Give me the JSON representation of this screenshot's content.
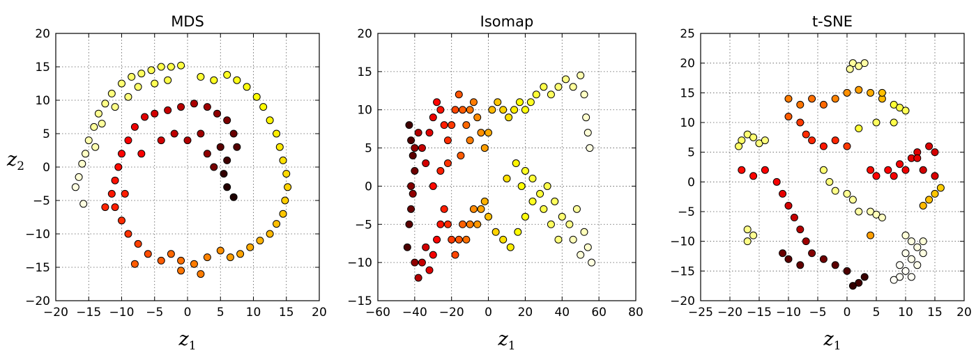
{
  "chart_data": [
    {
      "type": "scatter",
      "title": "MDS",
      "xlabel": "z",
      "xlabel_sub": "1",
      "ylabel": "z",
      "ylabel_sub": "2",
      "xlim": [
        -20,
        20
      ],
      "ylim": [
        -20,
        20
      ],
      "xticks": [
        -20,
        -15,
        -10,
        -5,
        0,
        5,
        10,
        15,
        20
      ],
      "yticks": [
        -20,
        -15,
        -10,
        -5,
        0,
        5,
        10,
        15,
        20
      ],
      "grid": true,
      "colormap": "hot",
      "points": [
        [
          -17,
          -3,
          0.97
        ],
        [
          -16.5,
          -1.5,
          0.96
        ],
        [
          -16,
          0.5,
          0.95
        ],
        [
          -15.5,
          2,
          0.94
        ],
        [
          -15,
          4,
          0.92
        ],
        [
          -14.2,
          6,
          0.9
        ],
        [
          -13.5,
          8,
          0.89
        ],
        [
          -12.5,
          9.5,
          0.88
        ],
        [
          -11.5,
          11,
          0.87
        ],
        [
          -10,
          12.5,
          0.86
        ],
        [
          -8.5,
          13.5,
          0.85
        ],
        [
          -7,
          14,
          0.84
        ],
        [
          -5.5,
          14.5,
          0.83
        ],
        [
          -4,
          15,
          0.82
        ],
        [
          -2.5,
          15,
          0.82
        ],
        [
          -1,
          15.2,
          0.81
        ],
        [
          -15.8,
          -5.5,
          0.97
        ],
        [
          -14,
          3,
          0.92
        ],
        [
          -13,
          6.5,
          0.9
        ],
        [
          -11,
          9,
          0.88
        ],
        [
          -9,
          10.5,
          0.87
        ],
        [
          -7.5,
          12,
          0.85
        ],
        [
          -5,
          12.5,
          0.83
        ],
        [
          -3,
          13,
          0.82
        ],
        [
          2,
          13.5,
          0.8
        ],
        [
          4,
          13,
          0.78
        ],
        [
          6,
          13.8,
          0.78
        ],
        [
          7.5,
          13,
          0.77
        ],
        [
          9,
          12,
          0.76
        ],
        [
          10.5,
          10.5,
          0.75
        ],
        [
          11.5,
          9,
          0.74
        ],
        [
          12.5,
          7,
          0.73
        ],
        [
          13.5,
          5,
          0.72
        ],
        [
          14,
          3,
          0.71
        ],
        [
          14.5,
          1,
          0.7
        ],
        [
          15,
          -1,
          0.69
        ],
        [
          15.2,
          -3,
          0.68
        ],
        [
          14.8,
          -5,
          0.67
        ],
        [
          14.5,
          -7,
          0.66
        ],
        [
          13.5,
          -8.5,
          0.65
        ],
        [
          12.5,
          -10,
          0.64
        ],
        [
          11,
          -11,
          0.63
        ],
        [
          9.5,
          -12,
          0.62
        ],
        [
          8,
          -13,
          0.61
        ],
        [
          6.5,
          -13.5,
          0.6
        ],
        [
          5,
          -12.5,
          0.58
        ],
        [
          3,
          -13.5,
          0.56
        ],
        [
          1,
          -14.5,
          0.55
        ],
        [
          -1,
          -14,
          0.53
        ],
        [
          -2.5,
          -13,
          0.52
        ],
        [
          -4,
          -14,
          0.5
        ],
        [
          -6,
          -13,
          0.48
        ],
        [
          -7.5,
          -11.5,
          0.46
        ],
        [
          -9,
          -10,
          0.44
        ],
        [
          -10,
          -8,
          0.43
        ],
        [
          -11,
          -6,
          0.41
        ],
        [
          -11.5,
          -4,
          0.4
        ],
        [
          -11,
          -2,
          0.39
        ],
        [
          -10.5,
          0,
          0.38
        ],
        [
          -10,
          2,
          0.37
        ],
        [
          -9,
          4,
          0.36
        ],
        [
          -8,
          6,
          0.34
        ],
        [
          -6.5,
          7.5,
          0.32
        ],
        [
          -5,
          8,
          0.3
        ],
        [
          -3,
          8.5,
          0.28
        ],
        [
          -1,
          9,
          0.26
        ],
        [
          1,
          9.5,
          0.24
        ],
        [
          3,
          9,
          0.22
        ],
        [
          4.5,
          8,
          0.2
        ],
        [
          6,
          7,
          0.17
        ],
        [
          7,
          5,
          0.14
        ],
        [
          7.5,
          3,
          0.11
        ],
        [
          6,
          1,
          0.08
        ],
        [
          5.5,
          -1,
          0.06
        ],
        [
          6,
          -3,
          0.04
        ],
        [
          7,
          -4.5,
          0.03
        ],
        [
          -8,
          -14.5,
          0.5
        ],
        [
          -1,
          -15.5,
          0.54
        ],
        [
          2,
          -16,
          0.55
        ],
        [
          -12.5,
          -6,
          0.42
        ],
        [
          -9.5,
          -4,
          0.41
        ],
        [
          -7,
          2,
          0.36
        ],
        [
          -4,
          4,
          0.3
        ],
        [
          -2,
          5,
          0.27
        ],
        [
          0,
          4,
          0.25
        ],
        [
          2,
          5,
          0.22
        ],
        [
          3,
          2,
          0.2
        ],
        [
          4,
          0,
          0.16
        ],
        [
          5,
          3,
          0.12
        ]
      ]
    },
    {
      "type": "scatter",
      "title": "Isomap",
      "xlabel": "z",
      "xlabel_sub": "1",
      "xlim": [
        -60,
        80
      ],
      "ylim": [
        -15,
        20
      ],
      "xticks": [
        -60,
        -40,
        -20,
        0,
        20,
        40,
        60,
        80
      ],
      "yticks": [
        -15,
        -10,
        -5,
        0,
        5,
        10,
        15,
        20
      ],
      "grid": true,
      "colormap": "hot",
      "points": [
        [
          -43,
          8,
          0.08
        ],
        [
          -42,
          6,
          0.1
        ],
        [
          -41,
          4,
          0.12
        ],
        [
          -40,
          2,
          0.15
        ],
        [
          -42,
          0,
          0.18
        ],
        [
          -41,
          -1,
          0.2
        ],
        [
          -42,
          -3,
          0.14
        ],
        [
          -40,
          5,
          0.2
        ],
        [
          -38,
          7,
          0.25
        ],
        [
          -36,
          5,
          0.28
        ],
        [
          -34,
          3,
          0.3
        ],
        [
          -32,
          7,
          0.32
        ],
        [
          -30,
          9,
          0.34
        ],
        [
          -28,
          11,
          0.37
        ],
        [
          -26,
          10,
          0.39
        ],
        [
          -24,
          8,
          0.41
        ],
        [
          -22,
          6,
          0.43
        ],
        [
          -20,
          8,
          0.45
        ],
        [
          -18,
          10,
          0.47
        ],
        [
          -16,
          12,
          0.49
        ],
        [
          -14,
          10,
          0.5
        ],
        [
          -12,
          8,
          0.52
        ],
        [
          -10,
          10,
          0.54
        ],
        [
          -8,
          11,
          0.55
        ],
        [
          -6,
          9,
          0.57
        ],
        [
          -4,
          7,
          0.58
        ],
        [
          -2,
          5,
          0.6
        ],
        [
          0,
          7,
          0.62
        ],
        [
          2,
          10,
          0.64
        ],
        [
          5,
          11,
          0.66
        ],
        [
          8,
          10,
          0.68
        ],
        [
          11,
          9,
          0.7
        ],
        [
          14,
          10,
          0.72
        ],
        [
          17,
          11,
          0.74
        ],
        [
          20,
          10,
          0.76
        ],
        [
          23,
          11,
          0.78
        ],
        [
          26,
          12,
          0.8
        ],
        [
          30,
          13,
          0.82
        ],
        [
          34,
          12,
          0.84
        ],
        [
          38,
          13,
          0.86
        ],
        [
          42,
          14,
          0.88
        ],
        [
          46,
          13,
          0.9
        ],
        [
          50,
          14.5,
          0.92
        ],
        [
          52,
          12,
          0.94
        ],
        [
          53,
          9,
          0.95
        ],
        [
          54,
          7,
          0.96
        ],
        [
          55,
          5,
          0.97
        ],
        [
          -40,
          -10,
          0.2
        ],
        [
          -38,
          -12,
          0.25
        ],
        [
          -36,
          -10,
          0.28
        ],
        [
          -34,
          -8,
          0.3
        ],
        [
          -32,
          -11,
          0.32
        ],
        [
          -30,
          -9,
          0.35
        ],
        [
          -28,
          -7,
          0.37
        ],
        [
          -26,
          -5,
          0.39
        ],
        [
          -24,
          -3,
          0.41
        ],
        [
          -22,
          -5,
          0.43
        ],
        [
          -20,
          -7,
          0.45
        ],
        [
          -18,
          -9,
          0.47
        ],
        [
          -16,
          -7,
          0.49
        ],
        [
          -14,
          -5,
          0.51
        ],
        [
          -12,
          -7,
          0.53
        ],
        [
          -10,
          -5,
          0.55
        ],
        [
          -8,
          -3,
          0.57
        ],
        [
          -6,
          -5,
          0.59
        ],
        [
          -4,
          -3,
          0.61
        ],
        [
          -2,
          -2,
          0.63
        ],
        [
          0,
          -4,
          0.65
        ],
        [
          4,
          -6,
          0.68
        ],
        [
          8,
          -7,
          0.7
        ],
        [
          12,
          -8,
          0.72
        ],
        [
          16,
          -6,
          0.74
        ],
        [
          20,
          -4,
          0.76
        ],
        [
          24,
          -2,
          0.78
        ],
        [
          28,
          -1,
          0.8
        ],
        [
          32,
          0,
          0.82
        ],
        [
          36,
          -2,
          0.84
        ],
        [
          40,
          -4,
          0.86
        ],
        [
          44,
          -5,
          0.88
        ],
        [
          48,
          -3,
          0.9
        ],
        [
          52,
          -6,
          0.93
        ],
        [
          54,
          -8,
          0.95
        ],
        [
          56,
          -10,
          0.97
        ],
        [
          50,
          -9,
          0.96
        ],
        [
          46,
          -7,
          0.93
        ],
        [
          20,
          2,
          0.78
        ],
        [
          24,
          1,
          0.8
        ],
        [
          30,
          -3,
          0.82
        ],
        [
          34,
          -5,
          0.84
        ],
        [
          38,
          -7,
          0.87
        ],
        [
          10,
          1,
          0.7
        ],
        [
          15,
          3,
          0.73
        ],
        [
          18,
          0,
          0.75
        ],
        [
          -44,
          -8,
          0.1
        ],
        [
          -43,
          -5,
          0.12
        ],
        [
          -30,
          0,
          0.38
        ],
        [
          -26,
          2,
          0.41
        ],
        [
          -22,
          3,
          0.44
        ],
        [
          -15,
          4,
          0.5
        ],
        [
          -10,
          6,
          0.55
        ]
      ]
    },
    {
      "type": "scatter",
      "title": "t-SNE",
      "xlabel": "z",
      "xlabel_sub": "1",
      "xlim": [
        -25,
        20
      ],
      "ylim": [
        -20,
        25
      ],
      "xticks": [
        -25,
        -20,
        -15,
        -10,
        -5,
        0,
        5,
        10,
        15,
        20
      ],
      "yticks": [
        -20,
        -15,
        -10,
        -5,
        0,
        5,
        10,
        15,
        20,
        25
      ],
      "grid": true,
      "colormap": "hot",
      "points": [
        [
          -18,
          7,
          0.85
        ],
        [
          -17,
          8,
          0.86
        ],
        [
          -16,
          7.5,
          0.86
        ],
        [
          -15,
          6.5,
          0.87
        ],
        [
          -14,
          7,
          0.87
        ],
        [
          -18.5,
          6,
          0.85
        ],
        [
          1,
          20,
          0.9
        ],
        [
          2,
          19.5,
          0.9
        ],
        [
          3,
          20,
          0.91
        ],
        [
          0.5,
          19,
          0.9
        ],
        [
          -10,
          14,
          0.55
        ],
        [
          -8,
          13,
          0.54
        ],
        [
          -6,
          14,
          0.53
        ],
        [
          -4,
          13,
          0.52
        ],
        [
          -2,
          14,
          0.56
        ],
        [
          0,
          15,
          0.58
        ],
        [
          2,
          15.5,
          0.6
        ],
        [
          4,
          15,
          0.62
        ],
        [
          6,
          14,
          0.64
        ],
        [
          8,
          13,
          0.8
        ],
        [
          9,
          12.5,
          0.82
        ],
        [
          5,
          10,
          0.84
        ],
        [
          -10,
          11,
          0.5
        ],
        [
          -8,
          10,
          0.45
        ],
        [
          -6,
          7,
          0.42
        ],
        [
          -4,
          6,
          0.4
        ],
        [
          -2,
          7,
          0.42
        ],
        [
          0,
          6,
          0.45
        ],
        [
          -7,
          8,
          0.43
        ],
        [
          -18,
          2,
          0.38
        ],
        [
          -16,
          1,
          0.37
        ],
        [
          -14,
          2,
          0.36
        ],
        [
          -12,
          0,
          0.35
        ],
        [
          -11,
          -2,
          0.33
        ],
        [
          -10,
          -4,
          0.3
        ],
        [
          -9,
          -6,
          0.28
        ],
        [
          -8,
          -8,
          0.25
        ],
        [
          -7,
          -10,
          0.22
        ],
        [
          -6,
          -12,
          0.18
        ],
        [
          -4,
          -13,
          0.15
        ],
        [
          -2,
          -14,
          0.12
        ],
        [
          0,
          -15,
          0.1
        ],
        [
          2,
          -17,
          0.08
        ],
        [
          3,
          -16,
          0.07
        ],
        [
          -10,
          -13,
          0.12
        ],
        [
          -8,
          -14,
          0.13
        ],
        [
          1,
          -17.5,
          0.06
        ],
        [
          -11,
          -12,
          0.14
        ],
        [
          4,
          2,
          0.38
        ],
        [
          5,
          1,
          0.37
        ],
        [
          7,
          2,
          0.36
        ],
        [
          8,
          1,
          0.35
        ],
        [
          9,
          3,
          0.35
        ],
        [
          10,
          2,
          0.34
        ],
        [
          11,
          4,
          0.33
        ],
        [
          12,
          5,
          0.32
        ],
        [
          14,
          6,
          0.31
        ],
        [
          15,
          5,
          0.3
        ],
        [
          13,
          2,
          0.3
        ],
        [
          15,
          1,
          0.31
        ],
        [
          14,
          -3,
          0.65
        ],
        [
          15,
          -2,
          0.66
        ],
        [
          16,
          -1,
          0.67
        ],
        [
          13,
          -4,
          0.64
        ],
        [
          -4,
          2,
          0.86
        ],
        [
          -3,
          0,
          0.87
        ],
        [
          -2,
          -1.5,
          0.88
        ],
        [
          0,
          -2,
          0.89
        ],
        [
          1,
          -3,
          0.9
        ],
        [
          2,
          -5,
          0.91
        ],
        [
          4,
          -5,
          0.92
        ],
        [
          5,
          -5.5,
          0.93
        ],
        [
          6,
          -6,
          0.94
        ],
        [
          -17,
          -8,
          0.88
        ],
        [
          -16,
          -9,
          0.89
        ],
        [
          -17,
          -10,
          0.88
        ],
        [
          10,
          -9,
          0.96
        ],
        [
          11,
          -10,
          0.97
        ],
        [
          12,
          -11,
          0.97
        ],
        [
          10,
          -12,
          0.98
        ],
        [
          11,
          -13,
          0.98
        ],
        [
          9,
          -14,
          0.99
        ],
        [
          10,
          -15,
          0.99
        ],
        [
          12,
          -14,
          0.98
        ],
        [
          13,
          -12,
          0.97
        ],
        [
          9,
          -16,
          0.99
        ],
        [
          8,
          -16.5,
          0.99
        ],
        [
          11,
          -16,
          0.99
        ],
        [
          13,
          -10,
          0.96
        ],
        [
          4,
          -9,
          0.6
        ],
        [
          8,
          10,
          0.82
        ],
        [
          10,
          12,
          0.83
        ],
        [
          6,
          15,
          0.65
        ],
        [
          2,
          9,
          0.8
        ],
        [
          12,
          4,
          0.33
        ]
      ]
    }
  ]
}
